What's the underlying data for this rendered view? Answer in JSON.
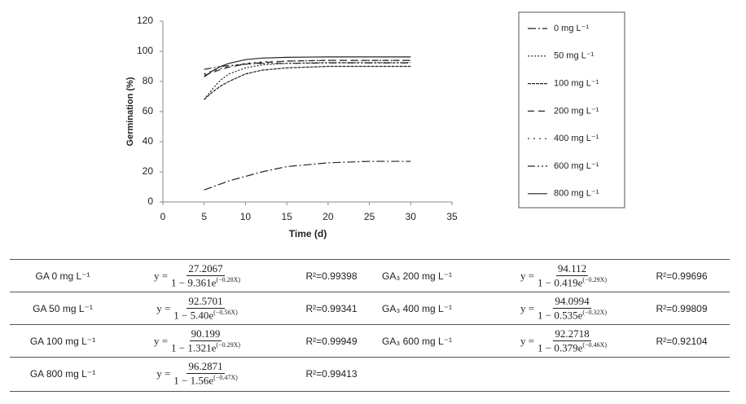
{
  "chart_data": {
    "type": "line",
    "ylabel": "Germination (%)",
    "xlabel": "Time (d)",
    "x": [
      5,
      6,
      7,
      8,
      10,
      12,
      15,
      20,
      25,
      30
    ],
    "xlim": [
      0,
      35
    ],
    "xticks": [
      0,
      5,
      10,
      15,
      20,
      25,
      30,
      35
    ],
    "ylim": [
      0,
      120
    ],
    "yticks": [
      0,
      20,
      40,
      60,
      80,
      100,
      120
    ],
    "grid": false,
    "legend": "right",
    "series": [
      {
        "name": "0 mg L⁻¹",
        "color": "#222222",
        "dash": "10,3,2,3",
        "values": [
          8,
          10,
          12,
          14,
          17,
          20,
          23.5,
          26,
          27,
          27
        ]
      },
      {
        "name": "50 mg L⁻¹",
        "color": "#222222",
        "dash": "2,2",
        "values": [
          68,
          75,
          81,
          85,
          89,
          91,
          92,
          92.5,
          92.5,
          92.5
        ]
      },
      {
        "name": "100 mg L⁻¹",
        "color": "#222222",
        "dash": "4,1",
        "values": [
          68,
          73,
          77,
          80,
          85,
          87.5,
          89,
          90,
          90,
          90
        ]
      },
      {
        "name": "200 mg L⁻¹",
        "color": "#222222",
        "dash": "8,5",
        "values": [
          84,
          86,
          88,
          89.5,
          91.5,
          92.5,
          93.5,
          94,
          94,
          94
        ]
      },
      {
        "name": "400 mg L⁻¹",
        "color": "#222222",
        "dash": "2,5",
        "values": [
          85,
          87,
          88.5,
          90,
          92,
          93,
          93.5,
          94,
          94,
          94
        ]
      },
      {
        "name": "600 mg L⁻¹",
        "color": "#222222",
        "dash": "9,3,2,3,2,3",
        "values": [
          88,
          89,
          90,
          90.5,
          91.5,
          92,
          92,
          92.3,
          92.3,
          92.3
        ]
      },
      {
        "name": "800 mg L⁻¹",
        "color": "#222222",
        "dash": "",
        "values": [
          83,
          87,
          90,
          92,
          94.5,
          95.5,
          96,
          96.3,
          96.3,
          96.3
        ]
      }
    ]
  },
  "table": {
    "rows": [
      [
        {
          "label": "GA 0 mg L⁻¹",
          "lhs": "y =",
          "numerator": "27.2067",
          "denominator": "1 − 9.361e",
          "exponent": "(−0.28X)",
          "r2": "R²=0.99398"
        },
        {
          "label": "GA₃ 200 mg L⁻¹",
          "lhs": "y =",
          "numerator": "94.112",
          "denominator": "1 − 0.419e",
          "exponent": "(−0.29X)",
          "r2": "R²=0.99696"
        }
      ],
      [
        {
          "label": "GA 50 mg L⁻¹",
          "lhs": "y =",
          "numerator": "92.5701",
          "denominator": "1 − 5.40e",
          "exponent": "(−0.56X)",
          "r2": "R²=0.99341"
        },
        {
          "label": "GA₃ 400 mg L⁻¹",
          "lhs": "y =",
          "numerator": "94.0994",
          "denominator": "1 − 0.535e",
          "exponent": "(−0.32X)",
          "r2": "R²=0.99809"
        }
      ],
      [
        {
          "label": "GA 100 mg L⁻¹",
          "lhs": "y =",
          "numerator": "90.199",
          "denominator": "1 − 1.321e",
          "exponent": "(−0.29X)",
          "r2": "R²=0.99949"
        },
        {
          "label": "GA₃ 600 mg L⁻¹",
          "lhs": "y =",
          "numerator": "92.2718",
          "denominator": "1 − 0.379e",
          "exponent": "(−0.46X)",
          "r2": "R²=0.92104"
        }
      ],
      [
        {
          "label": "GA 800 mg L⁻¹",
          "lhs": "y =",
          "numerator": "96.2871",
          "denominator": "1 − 1.56e",
          "exponent": "(−0.47X)",
          "r2": "R²=0.99413"
        }
      ]
    ]
  }
}
